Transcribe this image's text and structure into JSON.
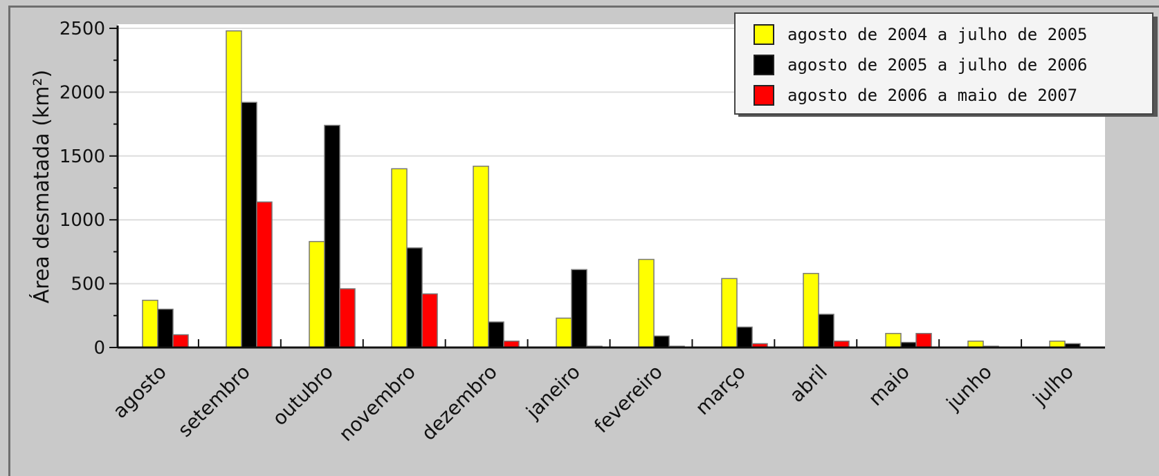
{
  "chart_data": {
    "type": "bar",
    "ylabel": "Área desmatada (km²)",
    "xlabel": "",
    "ylim": [
      0,
      2500
    ],
    "yticks": [
      0,
      500,
      1000,
      1500,
      2000,
      2500
    ],
    "grid": true,
    "legend_position": "top-right",
    "categories": [
      "agosto",
      "setembro",
      "outubro",
      "novembro",
      "dezembro",
      "janeiro",
      "fevereiro",
      "março",
      "abril",
      "maio",
      "junho",
      "julho"
    ],
    "series": [
      {
        "name": "agosto de 2004 a julho de 2005",
        "color": "#ffff00",
        "values": [
          370,
          2480,
          830,
          1400,
          1420,
          230,
          690,
          540,
          580,
          110,
          50,
          50
        ]
      },
      {
        "name": "agosto de 2005 a julho de 2006",
        "color": "#000000",
        "values": [
          300,
          1920,
          1740,
          780,
          200,
          610,
          90,
          160,
          260,
          40,
          10,
          30
        ]
      },
      {
        "name": "agosto de 2006 a maio de 2007",
        "color": "#ff0000",
        "values": [
          100,
          1140,
          460,
          420,
          50,
          10,
          10,
          30,
          50,
          110,
          null,
          null
        ]
      }
    ]
  }
}
